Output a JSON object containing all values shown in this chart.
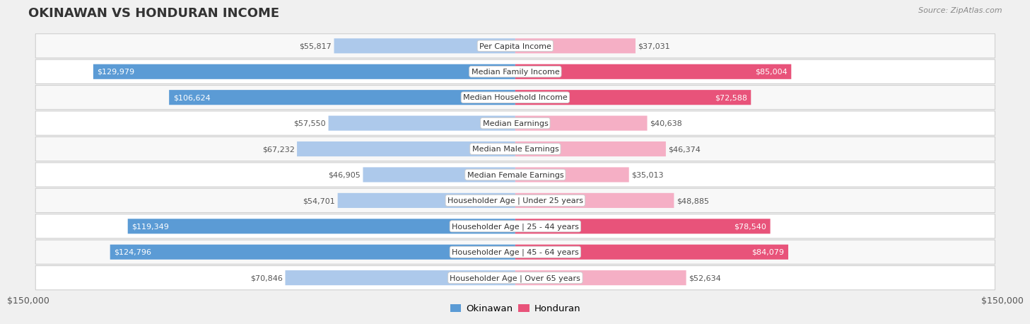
{
  "title": "OKINAWAN VS HONDURAN INCOME",
  "source": "Source: ZipAtlas.com",
  "max_val": 150000,
  "categories": [
    "Per Capita Income",
    "Median Family Income",
    "Median Household Income",
    "Median Earnings",
    "Median Male Earnings",
    "Median Female Earnings",
    "Householder Age | Under 25 years",
    "Householder Age | 25 - 44 years",
    "Householder Age | 45 - 64 years",
    "Householder Age | Over 65 years"
  ],
  "okinawan": [
    55817,
    129979,
    106624,
    57550,
    67232,
    46905,
    54701,
    119349,
    124796,
    70846
  ],
  "honduran": [
    37031,
    85004,
    72588,
    40638,
    46374,
    35013,
    48885,
    78540,
    84079,
    52634
  ],
  "okinawan_color_light": "#adc9eb",
  "okinawan_color_dark": "#5b9bd5",
  "honduran_color_light": "#f5afc5",
  "honduran_color_dark": "#e8537a",
  "bg_color": "#f0f0f0",
  "row_bg_even": "#f8f8f8",
  "row_bg_odd": "#ffffff",
  "value_color_outside": "#555555",
  "value_color_inside": "#ffffff",
  "ok_dark_threshold": 90000,
  "hon_dark_threshold": 65000,
  "legend_ok_color": "#5b9bd5",
  "legend_hon_color": "#e8537a"
}
